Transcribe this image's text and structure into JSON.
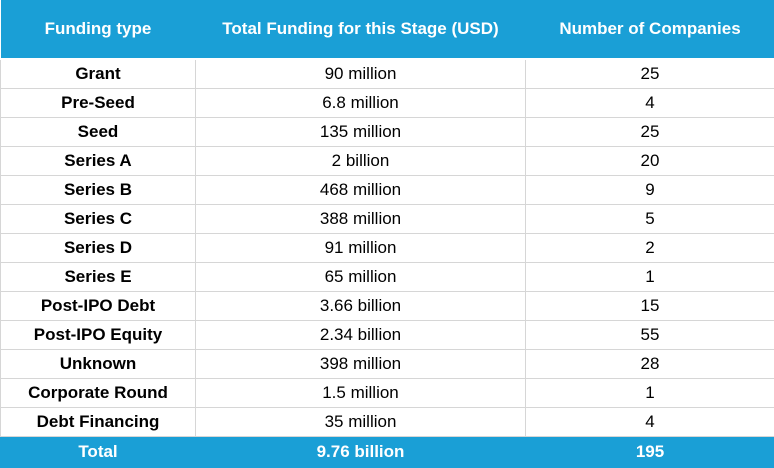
{
  "table": {
    "header": [
      "Funding type",
      "Total Funding for this Stage (USD)",
      "Number of Companies"
    ],
    "rows": [
      [
        "Grant",
        "90 million",
        25
      ],
      [
        "Pre-Seed",
        "6.8 million",
        4
      ],
      [
        "Seed",
        "135 million",
        25
      ],
      [
        "Series A",
        "2 billion",
        20
      ],
      [
        "Series B",
        "468 million",
        9
      ],
      [
        "Series C",
        "388 million",
        5
      ],
      [
        "Series D",
        "91 million",
        2
      ],
      [
        "Series E",
        "65 million",
        1
      ],
      [
        "Post-IPO Debt",
        "3.66 billion",
        15
      ],
      [
        "Post-IPO Equity",
        "2.34 billion",
        55
      ],
      [
        "Unknown",
        "398 million",
        28
      ],
      [
        "Corporate Round",
        "1.5 million",
        1
      ],
      [
        "Debt Financing",
        "35 million",
        4
      ]
    ],
    "total": [
      "Total",
      "9.76 billion",
      195
    ]
  }
}
